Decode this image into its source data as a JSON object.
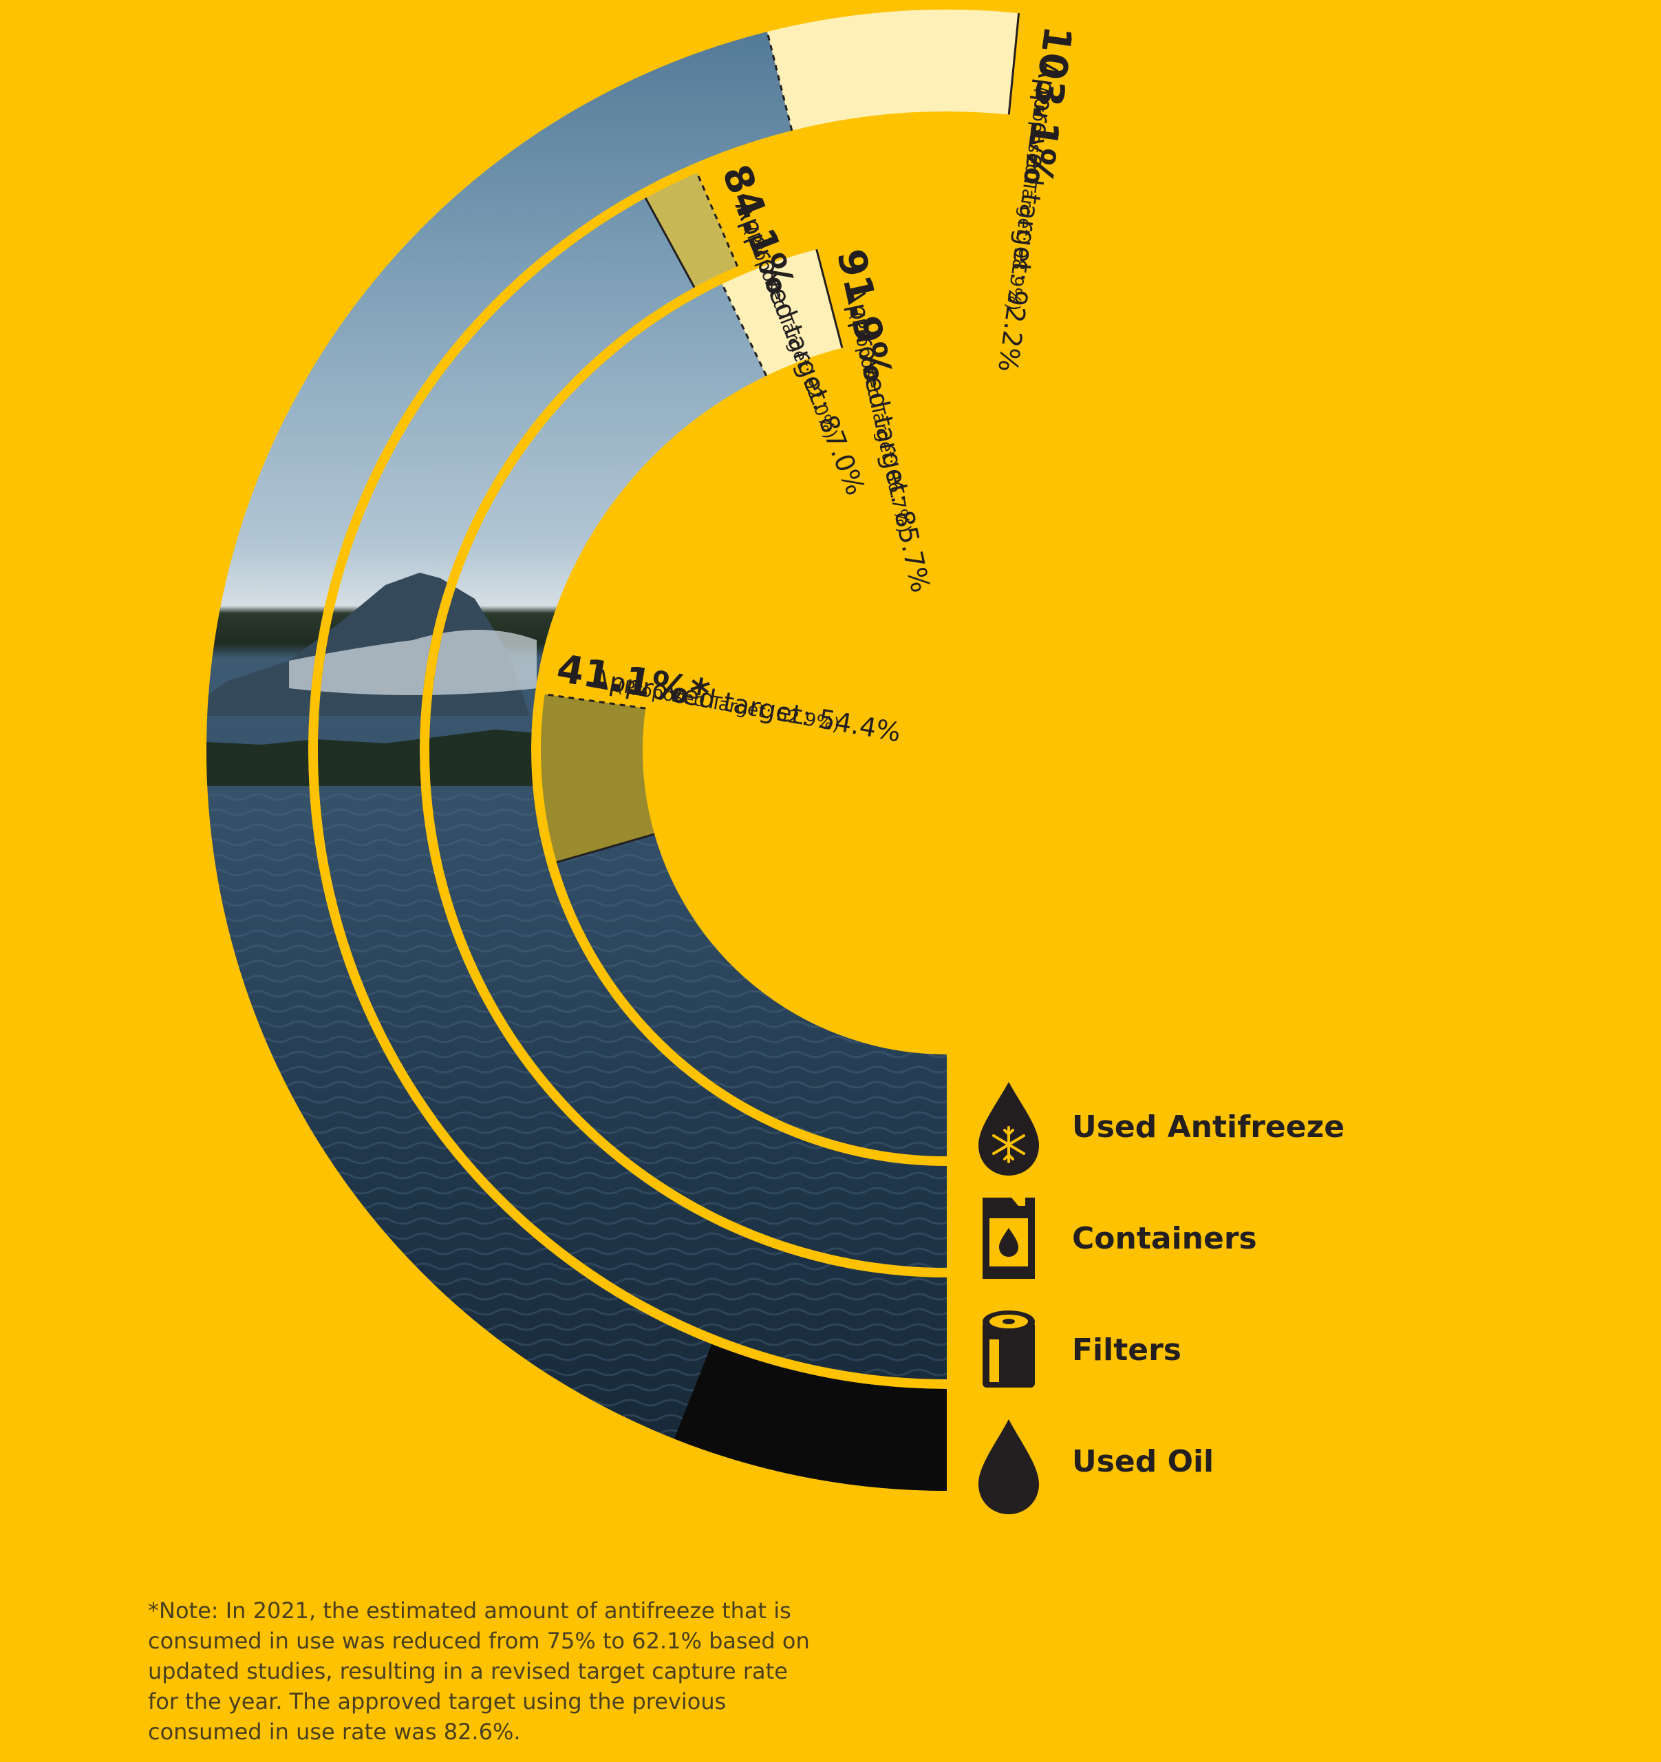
{
  "colors": {
    "background": "#FFC200",
    "used_oil_fill": "#9a8c2e",
    "containers_fill": "#c8b855",
    "target_fill": "#FFF0B8",
    "water": "#223c52",
    "sky": "#a8bfcf",
    "ink": "#231f20"
  },
  "chart_data": {
    "type": "radial-bar",
    "unit": "%",
    "series": [
      {
        "name": "Used Antifreeze",
        "icon": "antifreeze-drop-icon",
        "value_label": "41.1%*",
        "value": 41.1,
        "approved_label": "Approved target: 54.4%",
        "approved_target": 54.4,
        "proposed_label": "(Proposed Target: 52.9%)",
        "proposed_target": 52.9
      },
      {
        "name": "Containers",
        "icon": "container-jug-icon",
        "value_label": "91.9%",
        "value": 91.9,
        "approved_label": "Approved target: 85.7%",
        "approved_target": 85.7,
        "proposed_label": "(Proposed Target: 86.7%)",
        "proposed_target": 86.7
      },
      {
        "name": "Filters",
        "icon": "oil-filter-icon",
        "value_label": "84.1%",
        "value": 84.1,
        "approved_label": "Approved target: 87.0%",
        "approved_target": 87.0,
        "proposed_label": "(Proposed Target: 92.0%)",
        "proposed_target": 92.0
      },
      {
        "name": "Used Oil",
        "icon": "oil-drop-icon",
        "value_label": "103.1%",
        "value": 103.1,
        "approved_label": "Approved target: 92.2%",
        "approved_target": 92.2,
        "proposed_label": "(Proposed Target: 98.9%)",
        "proposed_target": 98.9
      }
    ]
  },
  "note": "*Note: In 2021, the estimated amount of antifreeze that is consumed in use was reduced from 75% to 62.1% based on updated studies, resulting in a revised target capture rate for the year. The approved target using the previous consumed in use rate was 82.6%."
}
